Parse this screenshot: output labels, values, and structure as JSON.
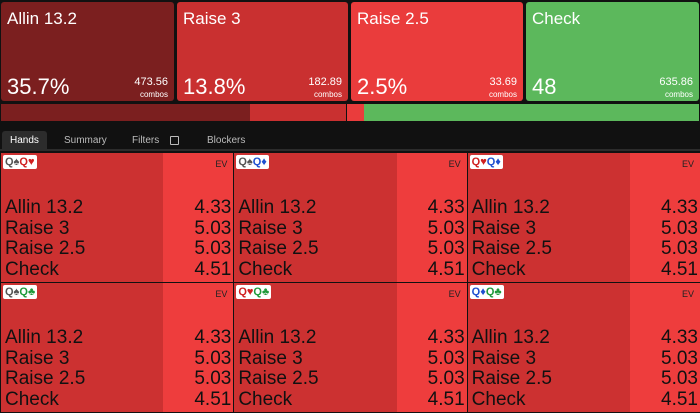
{
  "actions": [
    {
      "name": "Allin 13.2",
      "frequency": {
        "value": 35.7,
        "label": "35.7%"
      },
      "combos": "473.56",
      "combos_label": "combos"
    },
    {
      "name": "Raise 3",
      "frequency": {
        "value": 13.8,
        "label": "13.8%"
      },
      "combos": "182.89",
      "combos_label": "combos"
    },
    {
      "name": "Raise 2.5",
      "frequency": {
        "value": 2.5,
        "label": "2.5%"
      },
      "combos": "33.69",
      "combos_label": "combos"
    },
    {
      "name": "Check",
      "frequency": 48,
      "combos": "635.86",
      "combos_label": "combos"
    }
  ],
  "tabs": [
    "Hands",
    "Summary",
    "Filters",
    "Blockers"
  ],
  "hands": [
    {
      "cards": [
        "Q♠",
        "Q♥"
      ],
      "ev_label": "EV",
      "rows": [
        {
          "action": "Allin 13.2",
          "ev": "4.33"
        },
        {
          "action": "Raise 3",
          "ev": "5.03"
        },
        {
          "action": "Raise 2.5",
          "ev": "5.03"
        },
        {
          "action": "Check",
          "ev": "4.51"
        }
      ]
    },
    {
      "cards": [
        "Q♠",
        "Q♦"
      ],
      "ev_label": "EV",
      "rows": [
        {
          "action": "Allin 13.2",
          "ev": "4.33"
        },
        {
          "action": "Raise 3",
          "ev": "5.03"
        },
        {
          "action": "Raise 2.5",
          "ev": "5.03"
        },
        {
          "action": "Check",
          "ev": "4.51"
        }
      ]
    },
    {
      "cards": [
        "Q♥",
        "Q♦"
      ],
      "ev_label": "EV",
      "rows": [
        {
          "action": "Allin 13.2",
          "ev": "4.33"
        },
        {
          "action": "Raise 3",
          "ev": "5.03"
        },
        {
          "action": "Raise 2.5",
          "ev": "5.03"
        },
        {
          "action": "Check",
          "ev": "4.51"
        }
      ]
    },
    {
      "cards": [
        "Q♠",
        "Q♣"
      ],
      "ev_label": "EV",
      "rows": [
        {
          "action": "Allin 13.2",
          "ev": "4.33"
        },
        {
          "action": "Raise 3",
          "ev": "5.03"
        },
        {
          "action": "Raise 2.5",
          "ev": "5.03"
        },
        {
          "action": "Check",
          "ev": "4.51"
        }
      ]
    },
    {
      "cards": [
        "Q♥",
        "Q♣"
      ],
      "ev_label": "EV",
      "rows": [
        {
          "action": "Allin 13.2",
          "ev": "4.33"
        },
        {
          "action": "Raise 3",
          "ev": "5.03"
        },
        {
          "action": "Raise 2.5",
          "ev": "5.03"
        },
        {
          "action": "Check",
          "ev": "4.51"
        }
      ]
    },
    {
      "cards": [
        "Q♦",
        "Q♣"
      ],
      "ev_label": "EV",
      "rows": [
        {
          "action": "Allin 13.2",
          "ev": "4.33"
        },
        {
          "action": "Raise 3",
          "ev": "5.03"
        },
        {
          "action": "Raise 2.5",
          "ev": "5.03"
        },
        {
          "action": "Check",
          "ev": "4.51"
        }
      ]
    }
  ]
}
